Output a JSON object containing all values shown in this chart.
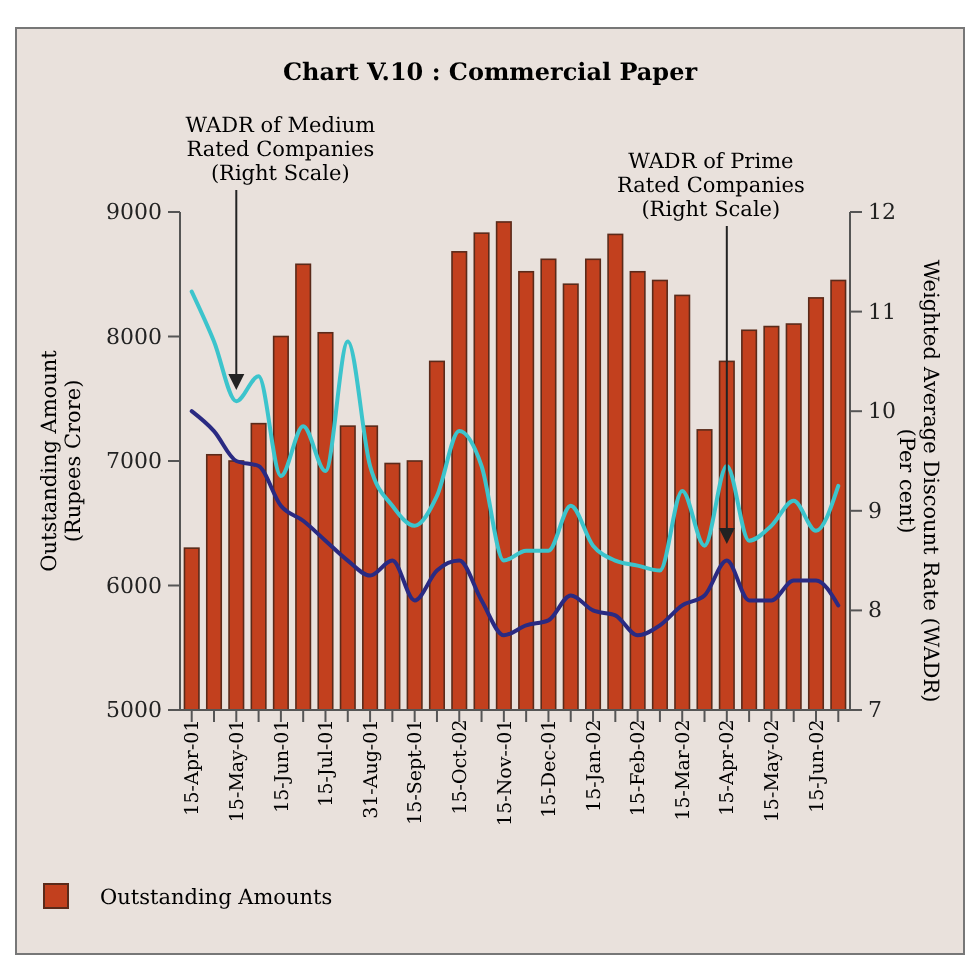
{
  "chart_data": {
    "type": "bar",
    "title": "Chart V.10 : Commercial Paper",
    "categories": [
      "15-Apr-01",
      null,
      "15-May-01",
      null,
      "15-Jun-01",
      null,
      "15-Jul-01",
      null,
      "31-Aug-01",
      null,
      "15-Sept-01",
      null,
      "15-Oct-02",
      null,
      "15-Nov--01",
      null,
      "15-Dec-01",
      null,
      "15-Jan-02",
      null,
      "15-Feb-02",
      null,
      "15-Mar-02",
      null,
      "15-Apr-02",
      null,
      "15-May-02",
      null,
      "15-Jun-02",
      null
    ],
    "series": [
      {
        "name": "Outstanding Amounts",
        "color": "#c2401e",
        "values": [
          6300,
          7050,
          7000,
          7300,
          8000,
          8580,
          8030,
          7280,
          7280,
          6980,
          7000,
          7800,
          8680,
          8830,
          8920,
          8520,
          8620,
          8420,
          8620,
          8820,
          8520,
          8450,
          8330,
          7250,
          7800,
          8050,
          8080,
          8100,
          8310,
          8450
        ]
      },
      {
        "type": "line",
        "axis": "y2",
        "color": "#3cc4cc",
        "values": [
          11.2,
          10.7,
          10.1,
          10.35,
          9.35,
          9.85,
          9.4,
          10.7,
          9.45,
          9.05,
          8.85,
          9.15,
          9.8,
          9.45,
          8.5,
          8.6,
          8.6,
          9.05,
          8.65,
          8.5,
          8.45,
          8.4,
          9.2,
          8.65,
          9.45,
          8.7,
          8.85,
          9.1,
          8.8,
          9.25
        ]
      },
      {
        "type": "line",
        "axis": "y2",
        "color": "#2a2a82",
        "values": [
          10.0,
          9.8,
          9.5,
          9.45,
          9.05,
          8.9,
          8.7,
          8.5,
          8.35,
          8.5,
          8.1,
          8.4,
          8.5,
          8.1,
          7.75,
          7.85,
          7.9,
          8.15,
          8.0,
          7.95,
          7.75,
          7.85,
          8.05,
          8.15,
          8.5,
          8.1,
          8.1,
          8.3,
          8.3,
          8.05
        ]
      }
    ],
    "ylim": [
      5000,
      9000
    ],
    "yticks": [
      5000,
      6000,
      7000,
      8000,
      9000
    ],
    "y2lim": [
      7,
      12
    ],
    "y2ticks": [
      7,
      8,
      9,
      10,
      11,
      12
    ],
    "ylabel": "Outstanding Amount\n(Rupees Crore)",
    "y2label": "Weighted Average Discount Rate (WADR)\n(Per cent)",
    "annotations": [
      "WADR of Medium\nRated Companies\n(Right Scale)",
      "WADR of Prime\nRated Companies\n(Right Scale)"
    ],
    "legend": "bottom left",
    "grid": false
  }
}
